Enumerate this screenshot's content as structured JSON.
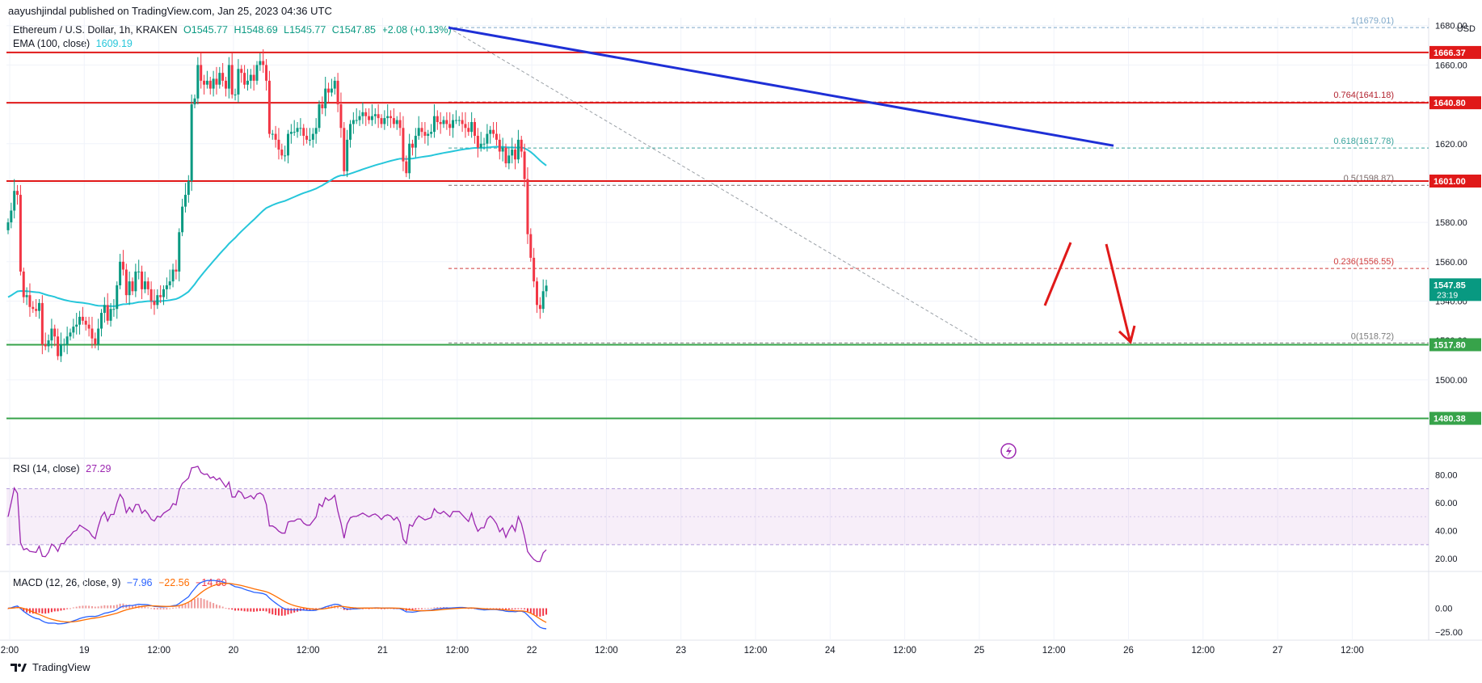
{
  "header": {
    "published": "aayushjindal published on TradingView.com, Jan 25, 2023 04:36 UTC",
    "symbol": "Ethereum / U.S. Dollar, 1h, KRAKEN",
    "ohlc": {
      "o": "O1545.77",
      "h": "H1548.69",
      "l": "L1545.77",
      "c": "C1547.85",
      "chg": "+2.08 (+0.13%)"
    },
    "ema_label": "EMA (100, close)",
    "ema_value": "1609.19",
    "currency": "USD"
  },
  "footer": {
    "brand": "TradingView"
  },
  "chart_data": [
    {
      "type": "candlestick",
      "title": "Ethereum / U.S. Dollar, 1h, KRAKEN",
      "ylim": [
        1465,
        1684
      ],
      "y_ticks": [
        1500,
        1520,
        1540,
        1560,
        1580,
        1600,
        1620,
        1640,
        1660,
        1680
      ],
      "y_tick_labels": [
        "1500.00",
        "1520.00",
        "1540.00",
        "1560.00",
        "1580.00",
        "1600.00",
        "1620.00",
        "1640.00",
        "1660.00",
        "1680.00"
      ],
      "x_tick_labels": [
        "2:00",
        "19",
        "12:00",
        "20",
        "12:00",
        "21",
        "12:00",
        "22",
        "12:00",
        "23",
        "12:00",
        "24",
        "12:00",
        "25",
        "12:00",
        "26",
        "12:00",
        "27",
        "12:00"
      ],
      "candles_per_day": 24,
      "first_candle_hour": "18 Jan 23:00",
      "closes": [
        1580,
        1586,
        1596,
        1594,
        1555,
        1542,
        1543,
        1537,
        1536,
        1535,
        1539,
        1518,
        1517,
        1520,
        1526,
        1522,
        1512,
        1518,
        1518,
        1522,
        1524,
        1527,
        1528,
        1532,
        1530,
        1528,
        1526,
        1521,
        1518,
        1526,
        1534,
        1538,
        1530,
        1536,
        1536,
        1548,
        1560,
        1556,
        1543,
        1550,
        1545,
        1555,
        1555,
        1546,
        1550,
        1546,
        1540,
        1538,
        1543,
        1542,
        1546,
        1548,
        1550,
        1556,
        1555,
        1575,
        1588,
        1594,
        1601,
        1640,
        1643,
        1660,
        1652,
        1650,
        1652,
        1648,
        1653,
        1650,
        1656,
        1652,
        1648,
        1660,
        1645,
        1645,
        1658,
        1656,
        1650,
        1652,
        1655,
        1652,
        1660,
        1662,
        1660,
        1652,
        1625,
        1625,
        1622,
        1617,
        1614,
        1614,
        1625,
        1626,
        1626,
        1628,
        1628,
        1624,
        1622,
        1622,
        1625,
        1628,
        1640,
        1638,
        1648,
        1646,
        1648,
        1652,
        1640,
        1628,
        1606,
        1622,
        1630,
        1632,
        1632,
        1634,
        1636,
        1634,
        1632,
        1634,
        1635,
        1633,
        1630,
        1633,
        1634,
        1633,
        1630,
        1632,
        1628,
        1611,
        1605,
        1620,
        1618,
        1624,
        1628,
        1626,
        1624,
        1625,
        1626,
        1634,
        1631,
        1630,
        1632,
        1630,
        1628,
        1632,
        1632,
        1632,
        1630,
        1628,
        1626,
        1631,
        1624,
        1618,
        1620,
        1620,
        1625,
        1627,
        1625,
        1622,
        1616,
        1618,
        1610,
        1614,
        1617,
        1612,
        1622,
        1616,
        1602,
        1574,
        1562,
        1550,
        1538,
        1536,
        1545,
        1547.85
      ],
      "horizontal_levels": [
        {
          "value": 1666.37,
          "color": "#e01919",
          "label": "1666.37"
        },
        {
          "value": 1640.8,
          "color": "#e01919",
          "label": "1640.80"
        },
        {
          "value": 1601.0,
          "color": "#e01919",
          "label": "1601.00"
        },
        {
          "value": 1517.8,
          "color": "#37a34a",
          "label": "1517.80"
        },
        {
          "value": 1480.38,
          "color": "#37a34a",
          "label": "1480.38"
        }
      ],
      "fib_levels": [
        {
          "ratio": "1",
          "value": 1679.01,
          "label": "1(1679.01)",
          "color": "#7fa8c9"
        },
        {
          "ratio": "0.764",
          "value": 1641.18,
          "label": "0.764(1641.18)",
          "color": "#b2232f"
        },
        {
          "ratio": "0.618",
          "value": 1617.78,
          "label": "0.618(1617.78)",
          "color": "#3aa39c"
        },
        {
          "ratio": "0.5",
          "value": 1598.87,
          "label": "0.5(1598.87)",
          "color": "#7a6a6a"
        },
        {
          "ratio": "0.236",
          "value": 1556.55,
          "label": "0.236(1556.55)",
          "color": "#cf3c3c"
        },
        {
          "ratio": "0",
          "value": 1518.72,
          "label": "0(1518.72)",
          "color": "#7a7a7a"
        }
      ],
      "price_labels": [
        {
          "value": 1547.85,
          "label": "1547.85",
          "sub": "23:19",
          "color": "#089981"
        }
      ],
      "trendline": {
        "from_value": 1679,
        "to_value": 1619,
        "color": "#1e2fd6"
      },
      "ema": {
        "name": "EMA (100, close)",
        "color": "#26c6da"
      }
    },
    {
      "type": "line",
      "title": "RSI (14, close)",
      "last_value": "27.29",
      "ylim": [
        12,
        90
      ],
      "y_ticks": [
        20,
        40,
        60,
        80
      ],
      "y_tick_labels": [
        "20.00",
        "40.00",
        "60.00",
        "80.00"
      ],
      "bands": [
        30,
        70
      ]
    },
    {
      "type": "histogram",
      "title": "MACD (12, 26, close, 9)",
      "values_display": [
        "−7.96",
        "−22.56",
        "−14.60"
      ],
      "ylim": [
        -30,
        36
      ],
      "y_ticks": [
        0,
        -25
      ],
      "y_tick_labels": [
        "0.00",
        "−25.00"
      ]
    }
  ]
}
